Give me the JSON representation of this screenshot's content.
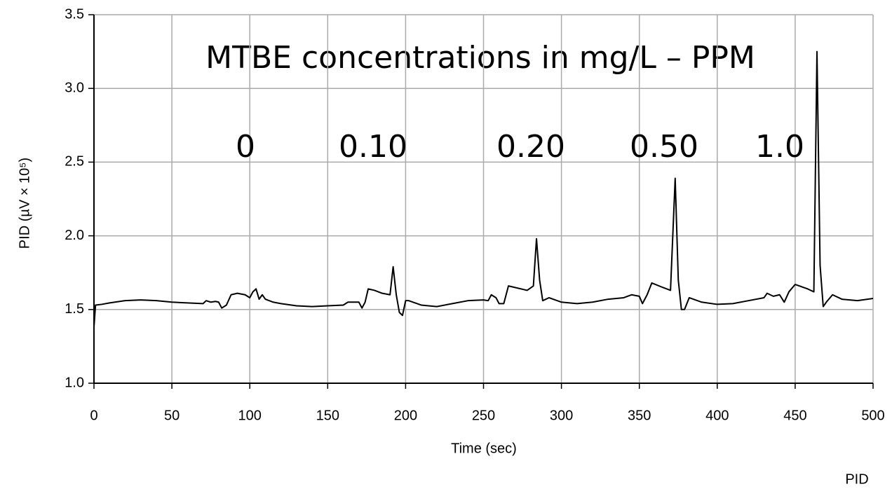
{
  "chart_data": {
    "type": "line",
    "title": "MTBE concentrations in mg/L – PPM",
    "annotations": [
      "0",
      "0.10",
      "0.20",
      "0.50",
      "1.0"
    ],
    "x_label": "Time (sec)",
    "y_label": "PID (µV × 10⁵)",
    "footer": "PID",
    "grid": true,
    "color": "#000000",
    "xlim": [
      0,
      500
    ],
    "xticks": [
      0,
      50,
      100,
      150,
      200,
      250,
      300,
      350,
      400,
      450,
      500
    ],
    "ylim": [
      1.0,
      3.5
    ],
    "yticks": [
      {
        "value": 1.0,
        "label": "1.0"
      },
      1.5,
      {
        "value": 2.0,
        "label": "2.0"
      },
      2.5,
      {
        "value": 3.0,
        "label": "3.0"
      },
      3.5
    ],
    "x": [
      0,
      1,
      5,
      10,
      20,
      30,
      40,
      50,
      60,
      70,
      72,
      75,
      78,
      80,
      82,
      85,
      88,
      92,
      97,
      100,
      102,
      104,
      106,
      108,
      110,
      115,
      120,
      130,
      140,
      150,
      160,
      163,
      168,
      170,
      172,
      174,
      176,
      180,
      185,
      190,
      192,
      194,
      196,
      198,
      200,
      202,
      210,
      220,
      230,
      240,
      250,
      253,
      255,
      258,
      260,
      263,
      266,
      270,
      278,
      282,
      284,
      286,
      288,
      292,
      300,
      310,
      320,
      330,
      340,
      345,
      350,
      352,
      355,
      358,
      365,
      370,
      373,
      375,
      377,
      379,
      382,
      390,
      400,
      410,
      420,
      430,
      432,
      436,
      440,
      443,
      446,
      450,
      458,
      462,
      464,
      466,
      468,
      470,
      474,
      480,
      490,
      500
    ],
    "values": [
      1.38,
      1.53,
      1.535,
      1.545,
      1.56,
      1.565,
      1.56,
      1.55,
      1.545,
      1.54,
      1.56,
      1.55,
      1.555,
      1.55,
      1.51,
      1.53,
      1.6,
      1.61,
      1.6,
      1.58,
      1.62,
      1.64,
      1.57,
      1.6,
      1.57,
      1.55,
      1.54,
      1.525,
      1.52,
      1.525,
      1.53,
      1.55,
      1.55,
      1.55,
      1.51,
      1.55,
      1.64,
      1.63,
      1.61,
      1.6,
      1.79,
      1.6,
      1.48,
      1.46,
      1.56,
      1.56,
      1.53,
      1.52,
      1.54,
      1.56,
      1.565,
      1.56,
      1.6,
      1.58,
      1.54,
      1.54,
      1.66,
      1.65,
      1.63,
      1.66,
      1.98,
      1.7,
      1.56,
      1.58,
      1.55,
      1.54,
      1.55,
      1.57,
      1.58,
      1.6,
      1.59,
      1.54,
      1.6,
      1.68,
      1.65,
      1.63,
      2.39,
      1.7,
      1.5,
      1.5,
      1.58,
      1.55,
      1.535,
      1.54,
      1.56,
      1.58,
      1.61,
      1.59,
      1.6,
      1.55,
      1.62,
      1.67,
      1.64,
      1.62,
      3.25,
      1.8,
      1.52,
      1.55,
      1.6,
      1.57,
      1.56,
      1.575
    ]
  }
}
